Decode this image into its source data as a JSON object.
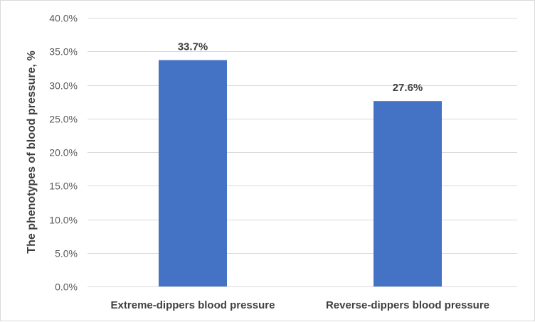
{
  "chart_data": {
    "type": "bar",
    "title": "",
    "xlabel": "",
    "ylabel": "The phenotypes of blood pressure, %",
    "categories": [
      "Extreme-dippers blood pressure",
      "Reverse-dippers blood pressure"
    ],
    "values": [
      33.7,
      27.6
    ],
    "data_labels": [
      "33.7%",
      "27.6%"
    ],
    "ylim": [
      0,
      40
    ],
    "yticks": [
      0,
      5,
      10,
      15,
      20,
      25,
      30,
      35,
      40
    ],
    "ytick_labels": [
      "0.0%",
      "5.0%",
      "10.0%",
      "15.0%",
      "20.0%",
      "25.0%",
      "30.0%",
      "35.0%",
      "40.0%"
    ],
    "grid": true,
    "legend": "none",
    "bar_color": "#4472c4"
  }
}
